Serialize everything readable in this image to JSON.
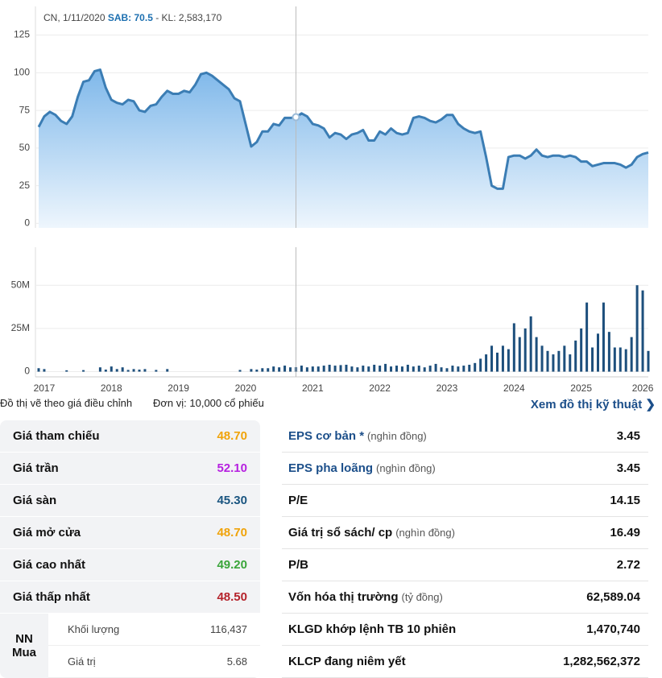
{
  "chart_data": {
    "type": "area",
    "color": "#3b7db4",
    "categories": [
      null,
      "2017",
      null,
      null,
      null,
      null,
      null,
      null,
      null,
      null,
      null,
      null,
      null,
      "2018",
      null,
      null,
      null,
      null,
      null,
      null,
      null,
      null,
      null,
      null,
      null,
      "2019",
      null,
      null,
      null,
      null,
      null,
      null,
      null,
      null,
      null,
      null,
      null,
      "2020",
      null,
      null,
      null,
      null,
      null,
      null,
      null,
      null,
      null,
      null,
      null,
      "2021",
      null,
      null,
      null,
      null,
      null,
      null,
      null,
      null,
      null,
      null,
      null,
      "2022",
      null,
      null,
      null,
      null,
      null,
      null,
      null,
      null,
      null,
      null,
      null,
      "2023",
      null,
      null,
      null,
      null,
      null,
      null,
      null,
      null,
      null,
      null,
      null,
      "2024",
      null,
      null,
      null,
      null,
      null,
      null,
      null,
      null,
      null,
      null,
      null,
      "2025",
      null,
      null,
      null,
      null,
      null,
      null,
      null,
      null,
      null,
      null,
      "2026",
      null
    ],
    "values": [
      64,
      71,
      74,
      72,
      68,
      66,
      71,
      84,
      94,
      95,
      101,
      102,
      90,
      82,
      80,
      79,
      82,
      81,
      75,
      74,
      78,
      79,
      84,
      88,
      86,
      86,
      88,
      87,
      92,
      99,
      100,
      98,
      95,
      92,
      89,
      83,
      81,
      66,
      51,
      54,
      61,
      61,
      66,
      65,
      70,
      70,
      70.5,
      73,
      71,
      66,
      65,
      63,
      57,
      60,
      59,
      56,
      59,
      60,
      62,
      55,
      55,
      61,
      59,
      63,
      60,
      59,
      60,
      70,
      71,
      70,
      68,
      67,
      69,
      72,
      72,
      66,
      63,
      61,
      60,
      61,
      44,
      25,
      23,
      23,
      44,
      45,
      45,
      43,
      45,
      49,
      45,
      44,
      45,
      45,
      44,
      45,
      44,
      41,
      41,
      38,
      39,
      40,
      40,
      40,
      39,
      37,
      39,
      44,
      46,
      47
    ],
    "ylim": [
      -3,
      144
    ],
    "yticks": [
      0,
      25,
      50,
      75,
      100,
      125
    ],
    "grid": true,
    "tooltip": {
      "index": 46,
      "parts": [
        "CN, 1/11/2020",
        "SAB: 70.5",
        "- KL: 2,583,170"
      ]
    },
    "volume": {
      "color": "#1d4f7c",
      "values": [
        2000000,
        1500000,
        0,
        0,
        0,
        800000,
        0,
        0,
        900000,
        0,
        0,
        2500000,
        1200000,
        3000000,
        1500000,
        2500000,
        1000000,
        1500000,
        1200000,
        1500000,
        0,
        1000000,
        0,
        1500000,
        0,
        0,
        0,
        0,
        0,
        0,
        0,
        0,
        0,
        0,
        0,
        0,
        1000000,
        0,
        1500000,
        1200000,
        2000000,
        2000000,
        3000000,
        2500000,
        3500000,
        2500000,
        2583170,
        3500000,
        2500000,
        3000000,
        3000000,
        3500000,
        4000000,
        3500000,
        3800000,
        4000000,
        3000000,
        2500000,
        3500000,
        3000000,
        4000000,
        3500000,
        4500000,
        3000000,
        3500000,
        3000000,
        4000000,
        3000000,
        3500000,
        2500000,
        3500000,
        4500000,
        2500000,
        2000000,
        3500000,
        3000000,
        3500000,
        4000000,
        5000000,
        7500000,
        10000000,
        15000000,
        11000000,
        15000000,
        13000000,
        28000000,
        20000000,
        25000000,
        32000000,
        20000000,
        15000000,
        12000000,
        10000000,
        12000000,
        15000000,
        10000000,
        18000000,
        25000000,
        40000000,
        14000000,
        22000000,
        40000000,
        23000000,
        14000000,
        14000000,
        13000000,
        20000000,
        50000000,
        47000000,
        12000000
      ],
      "ylim": [
        -3000000,
        72000000
      ],
      "yticks": [
        0,
        {
          "value": 25000000,
          "label": "25M"
        },
        {
          "value": 50000000,
          "label": "50M"
        }
      ]
    }
  },
  "notes": [
    "Đồ thị vẽ theo giá điều chỉnh",
    "Đơn vị: 10,000 cổ phiếu"
  ],
  "link": "Xem đồ thị kỹ thuật",
  "price_table": {
    "rows": [
      [
        "Giá tham chiếu",
        "48.70"
      ],
      [
        "Giá trần",
        "52.10"
      ],
      [
        "Giá sàn",
        "45.30"
      ],
      [
        "Giá mở cửa",
        "48.70"
      ],
      [
        "Giá cao nhất",
        "49.20"
      ],
      [
        "Giá thấp nhất",
        "48.50"
      ]
    ]
  },
  "nn": {
    "label": "NN Mua",
    "rows": [
      [
        "Khối lượng",
        "116,437"
      ],
      [
        "Giá trị",
        "5.68"
      ]
    ]
  },
  "fundamentals": {
    "rows": [
      {
        "label": "EPS cơ bản *",
        "unit": "(nghìn đồng)",
        "value": "3.45"
      },
      {
        "label": "EPS pha loãng",
        "unit": "(nghìn đồng)",
        "value": "3.45"
      },
      {
        "label": "P/E",
        "value": "14.15"
      },
      {
        "label": "Giá trị sổ sách/ cp",
        "unit": "(nghìn đồng)",
        "value": "16.49"
      },
      {
        "label": "P/B",
        "value": "2.72"
      },
      {
        "label": "Vốn hóa thị trường",
        "unit": "(tỷ đồng)",
        "value": "62,589.04"
      },
      {
        "label": "KLGD khớp lệnh TB 10 phiên",
        "value": "1,470,740"
      },
      {
        "label": "KLCP đang niêm yết",
        "value": "1,282,562,372"
      }
    ]
  }
}
